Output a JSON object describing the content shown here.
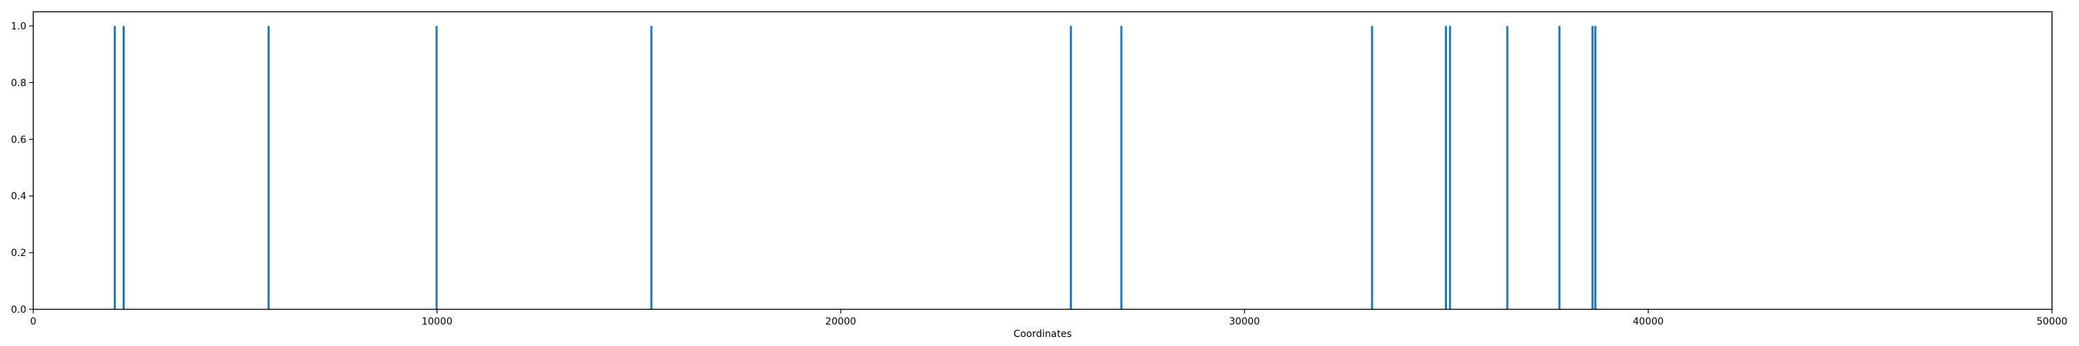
{
  "chart_data": {
    "type": "bar",
    "title": "",
    "xlabel": "Coordinates",
    "ylabel": "",
    "xlim": [
      0,
      50000
    ],
    "ylim": [
      0.0,
      1.05
    ],
    "grid": false,
    "x_ticks": [
      0,
      10000,
      20000,
      30000,
      40000,
      50000
    ],
    "x_tick_labels": [
      "0",
      "10000",
      "20000",
      "30000",
      "40000",
      "50000"
    ],
    "y_ticks": [
      0.0,
      0.2,
      0.4,
      0.6,
      0.8,
      1.0
    ],
    "y_tick_labels": [
      "0.0",
      "0.2",
      "0.4",
      "0.6",
      "0.8",
      "1.0"
    ],
    "series": [
      {
        "color": "#1f77b4",
        "x": [
          2020,
          2240,
          5830,
          9990,
          15310,
          25700,
          26950,
          33160,
          34990,
          35090,
          36510,
          37800,
          38620,
          38690
        ],
        "values": [
          1,
          1,
          1,
          1,
          1,
          1,
          1,
          1,
          1,
          1,
          1,
          1,
          1,
          1
        ]
      }
    ]
  }
}
